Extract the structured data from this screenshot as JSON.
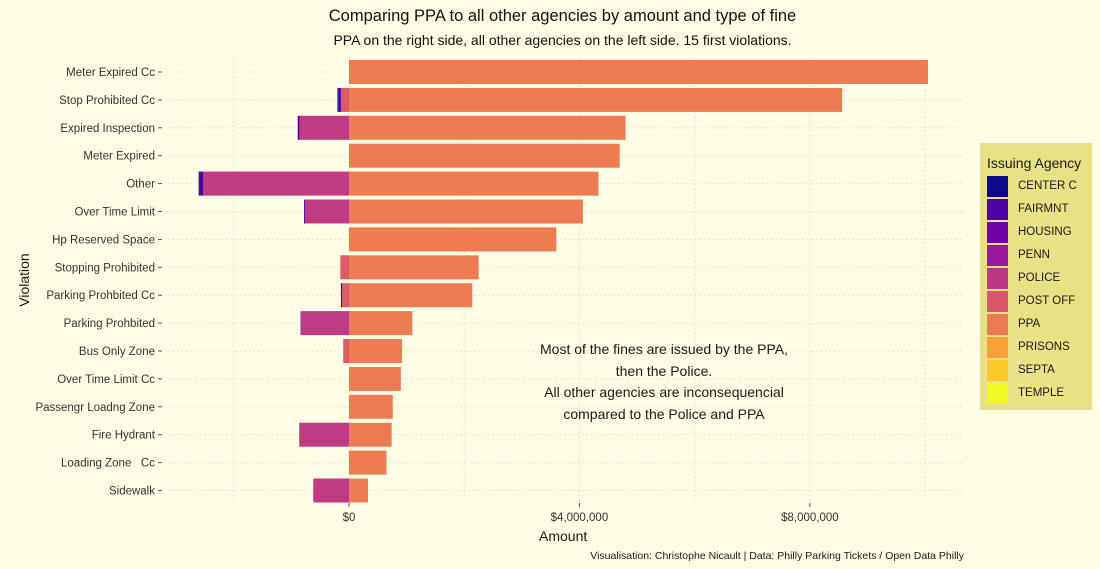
{
  "chart_data": {
    "type": "bar",
    "orientation": "horizontal-diverging",
    "title": "Comparing PPA to all other agencies by amount and type of fine",
    "subtitle": "PPA on the right side, all other agencies on the left side. 15 first violations.",
    "xlabel": "Amount",
    "ylabel": "Violation",
    "xlim": [
      -3400000,
      10800000
    ],
    "x_ticks": [
      0,
      4000000,
      8000000
    ],
    "x_tick_labels": [
      "$0",
      "$4,000,000",
      "$8,000,000"
    ],
    "grid": "dotted",
    "legend_position": "right",
    "legend_title": "Issuing Agency",
    "categories": [
      "Meter Expired Cc",
      "Stop Prohibited Cc",
      "Expired Inspection",
      "Meter Expired",
      "Other",
      "Over Time Limit",
      "Hp Reserved Space",
      "Stopping Prohibited",
      "Parking Prohbited Cc",
      "Parking Prohbited",
      "Bus Only Zone",
      "Over Time Limit Cc",
      "Passengr Loadng Zone",
      "Fire Hydrant",
      "Loading Zone   Cc",
      "Sidewalk"
    ],
    "series": [
      {
        "name": "PPA",
        "color": "#ee7b51",
        "values": [
          10050000,
          8560000,
          4800000,
          4700000,
          4330000,
          4060000,
          3600000,
          2250000,
          2140000,
          1100000,
          920000,
          900000,
          760000,
          740000,
          650000,
          330000
        ]
      },
      {
        "name": "POLICE",
        "color": "#c13b82",
        "values": [
          0,
          0,
          860000,
          0,
          2530000,
          760000,
          0,
          0,
          0,
          830000,
          0,
          0,
          0,
          850000,
          0,
          620000
        ]
      },
      {
        "name": "POST OFF",
        "color": "#db5c68",
        "values": [
          0,
          140000,
          0,
          0,
          0,
          0,
          0,
          150000,
          120000,
          0,
          100000,
          0,
          0,
          0,
          0,
          0
        ]
      },
      {
        "name": "PENN",
        "color": "#9c179e",
        "values": [
          0,
          0,
          0,
          0,
          0,
          0,
          0,
          0,
          0,
          0,
          0,
          0,
          0,
          0,
          0,
          0
        ]
      },
      {
        "name": "HOUSING",
        "color": "#7201a8",
        "values": [
          0,
          0,
          0,
          0,
          0,
          0,
          0,
          0,
          0,
          0,
          0,
          0,
          0,
          0,
          0,
          0
        ]
      },
      {
        "name": "FAIRMNT",
        "color": "#4c02a1",
        "values": [
          0,
          40000,
          30000,
          0,
          60000,
          20000,
          0,
          0,
          20000,
          10000,
          0,
          0,
          0,
          10000,
          0,
          0
        ]
      },
      {
        "name": "CENTER C",
        "color": "#0d0887",
        "values": [
          0,
          20000,
          0,
          0,
          20000,
          0,
          0,
          0,
          0,
          0,
          0,
          0,
          0,
          0,
          0,
          0
        ]
      }
    ],
    "legend_entries": [
      {
        "name": "CENTER C",
        "color": "#0d0887"
      },
      {
        "name": "FAIRMNT",
        "color": "#4c02a1"
      },
      {
        "name": "HOUSING",
        "color": "#7201a8"
      },
      {
        "name": "PENN",
        "color": "#9c179e"
      },
      {
        "name": "POLICE",
        "color": "#bd3786"
      },
      {
        "name": "POST OFF",
        "color": "#d8576b"
      },
      {
        "name": "PPA",
        "color": "#ed7953"
      },
      {
        "name": "PRISONS",
        "color": "#fb9f3a"
      },
      {
        "name": "SEPTA",
        "color": "#fdca26"
      },
      {
        "name": "TEMPLE",
        "color": "#f0f921"
      }
    ],
    "annotation": [
      "Most of the fines are issued by the PPA,",
      "then the Police.",
      "All other agencies are inconsequencial",
      "compared to the Police and PPA"
    ],
    "caption": "Visualisation: Christophe Nicault | Data: Philly Parking Tickets / Open Data Philly"
  }
}
